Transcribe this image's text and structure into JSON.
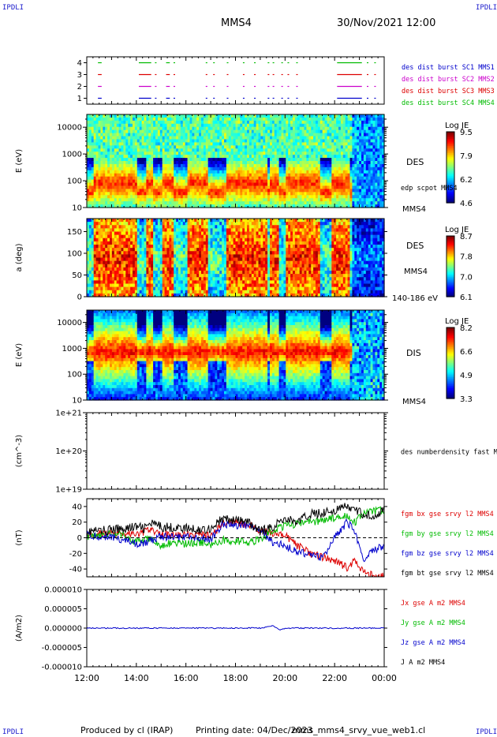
{
  "header": {
    "corner_label": "IPDLI",
    "spacecraft": "MMS4",
    "datetime": "30/Nov/2021 12:00"
  },
  "footer": {
    "producer": "Produced by cl (IRAP)",
    "printing_date": "Printing date: 04/Dec/2023",
    "filename": "mms_mms4_srvy_vue_web1.cl"
  },
  "time_axis": {
    "start_hour": 12,
    "end_hour": 24,
    "ticks": [
      "12:00",
      "14:00",
      "16:00",
      "18:00",
      "20:00",
      "22:00",
      "00:00"
    ]
  },
  "colors": {
    "blue": "#0000cc",
    "magenta": "#cc00cc",
    "red": "#dd0000",
    "green": "#00bb00",
    "black": "#000000"
  },
  "chart_data": [
    {
      "type": "timeline",
      "ylim": [
        0.5,
        4.5
      ],
      "yticks": [
        "1",
        "2",
        "3",
        "4"
      ],
      "legend": [
        {
          "label": "des dist burst SC1 MMS1",
          "color": "#0000cc"
        },
        {
          "label": "des dist burst SC2 MMS2",
          "color": "#cc00cc"
        },
        {
          "label": "des dist burst SC3 MMS3",
          "color": "#dd0000"
        },
        {
          "label": "des dist burst SC4 MMS4",
          "color": "#00bb00"
        }
      ],
      "intervals": [
        [
          12.45,
          12.6
        ],
        [
          14.1,
          14.6
        ],
        [
          14.75,
          14.8
        ],
        [
          15.2,
          15.35
        ],
        [
          15.5,
          15.55
        ],
        [
          16.8,
          16.85
        ],
        [
          17.1,
          17.15
        ],
        [
          17.65,
          17.7
        ],
        [
          18.3,
          18.35
        ],
        [
          18.75,
          18.8
        ],
        [
          19.3,
          19.35
        ],
        [
          19.5,
          19.55
        ],
        [
          19.85,
          19.9
        ],
        [
          20.1,
          20.15
        ],
        [
          20.45,
          20.5
        ],
        [
          22.1,
          23.1
        ],
        [
          23.3,
          23.35
        ],
        [
          23.6,
          23.65
        ]
      ]
    },
    {
      "type": "heatmap",
      "ylabel": "E (eV)",
      "yscale": "log",
      "ylim": [
        10,
        30000
      ],
      "yticks": [
        "10",
        "100",
        "1000",
        "10000"
      ],
      "side_label": "DES",
      "side_sub": "edp scpot MMS4",
      "bottom_label": "MMS4",
      "colorbar": {
        "title": "Log JE",
        "ticks": [
          "9.5",
          "7.9",
          "6.2",
          "4.6"
        ]
      }
    },
    {
      "type": "heatmap",
      "ylabel": "a (deg)",
      "ylim": [
        0,
        180
      ],
      "yticks": [
        "0",
        "50",
        "100",
        "150"
      ],
      "side_label": "DES",
      "side_sub": "MMS4",
      "bottom_label": "140-186 eV",
      "colorbar": {
        "title": "Log JE",
        "ticks": [
          "8.7",
          "7.8",
          "7.0",
          "6.1"
        ]
      }
    },
    {
      "type": "heatmap",
      "ylabel": "E (eV)",
      "yscale": "log",
      "ylim": [
        10,
        30000
      ],
      "yticks": [
        "10",
        "100",
        "1000",
        "10000"
      ],
      "side_label": "DIS",
      "bottom_label": "MMS4",
      "colorbar": {
        "title": "Log JE",
        "ticks": [
          "8.2",
          "6.6",
          "4.9",
          "3.3"
        ]
      }
    },
    {
      "type": "line",
      "ylabel": "(cm^-3)",
      "yscale": "log",
      "ylim": [
        1e+19,
        1e+21
      ],
      "yticks": [
        "1e+19",
        "1e+20",
        "1e+21"
      ],
      "legend": [
        {
          "label": "des numberdensity fast M",
          "color": "#000000"
        }
      ],
      "series": []
    },
    {
      "type": "line",
      "ylabel": "(nT)",
      "ylim": [
        -50,
        50
      ],
      "yticks": [
        "-40",
        "-20",
        "0",
        "20",
        "40"
      ],
      "legend": [
        {
          "label": "fgm bx gse srvy l2 MMS4",
          "color": "#dd0000"
        },
        {
          "label": "fgm by gse srvy l2 MMS4",
          "color": "#00bb00"
        },
        {
          "label": "fgm bz gse srvy l2 MMS4",
          "color": "#0000cc"
        },
        {
          "label": "fgm bt gse srvy l2 MMS4",
          "color": "#000000"
        }
      ],
      "series": [
        {
          "name": "fgm bt gse srvy l2 MMS4",
          "color": "#000000",
          "x": [
            12,
            12.5,
            13,
            13.5,
            14,
            14.3,
            14.6,
            15,
            15.5,
            16,
            16.5,
            17,
            17.3,
            17.5,
            18,
            18.5,
            19,
            19.5,
            20,
            20.5,
            21,
            21.5,
            22,
            22.5,
            22.8,
            23.2,
            23.5,
            24
          ],
          "values": [
            8,
            9,
            10,
            12,
            14,
            12,
            18,
            14,
            13,
            12,
            10,
            12,
            20,
            24,
            22,
            20,
            8,
            14,
            25,
            20,
            30,
            32,
            35,
            40,
            35,
            30,
            28,
            35
          ]
        },
        {
          "name": "fgm bx gse srvy l2 MMS4",
          "color": "#dd0000",
          "x": [
            12,
            12.5,
            13,
            13.5,
            14,
            14.5,
            15,
            15.5,
            16,
            16.5,
            17,
            17.5,
            18,
            18.5,
            19,
            19.5,
            20,
            20.5,
            21,
            21.5,
            22,
            22.5,
            22.8,
            23.2,
            23.5,
            24
          ],
          "values": [
            5,
            6,
            5,
            6,
            4,
            10,
            5,
            4,
            3,
            4,
            2,
            18,
            20,
            16,
            10,
            6,
            4,
            -10,
            -20,
            -25,
            -30,
            -38,
            -30,
            -45,
            -48,
            -50
          ]
        },
        {
          "name": "fgm by gse srvy l2 MMS4",
          "color": "#00bb00",
          "x": [
            12,
            12.5,
            13,
            13.5,
            14,
            14.5,
            15,
            15.5,
            16,
            16.5,
            17,
            17.5,
            18,
            18.5,
            19,
            19.5,
            20,
            20.5,
            21,
            21.5,
            22,
            22.5,
            22.8,
            23.2,
            23.5,
            24
          ],
          "values": [
            2,
            4,
            5,
            3,
            -6,
            -2,
            -10,
            -6,
            -8,
            -5,
            -10,
            -3,
            -4,
            -6,
            -2,
            10,
            15,
            18,
            20,
            22,
            25,
            28,
            20,
            30,
            34,
            35
          ]
        },
        {
          "name": "fgm bz gse srvy l2 MMS4",
          "color": "#0000cc",
          "x": [
            12,
            12.5,
            13,
            13.5,
            14,
            14.5,
            15,
            15.5,
            16,
            16.5,
            17,
            17.5,
            18,
            18.5,
            19,
            19.5,
            20,
            20.5,
            21,
            21.5,
            22,
            22.5,
            22.8,
            23.2,
            23.5,
            24
          ],
          "values": [
            3,
            2,
            0,
            -2,
            -8,
            -5,
            2,
            0,
            1,
            0,
            -2,
            18,
            16,
            15,
            10,
            -6,
            -10,
            -18,
            -22,
            -26,
            0,
            20,
            10,
            -30,
            -15,
            -12
          ]
        }
      ]
    },
    {
      "type": "line",
      "ylabel": "(A/m2)",
      "ylim": [
        -1e-05,
        1e-05
      ],
      "yticks": [
        "-0.000010",
        "-0.000005",
        "0.000000",
        "0.000005",
        "0.000010"
      ],
      "legend": [
        {
          "label": "Jx gse A m2 MMS4",
          "color": "#dd0000"
        },
        {
          "label": "Jy gse A m2 MMS4",
          "color": "#00bb00"
        },
        {
          "label": "Jz gse A m2 MMS4",
          "color": "#0000cc"
        },
        {
          "label": "J A m2 MMS4",
          "color": "#000000"
        }
      ],
      "series": [
        {
          "name": "Jz gse A m2 MMS4",
          "color": "#0000cc",
          "x": [
            12,
            13,
            14,
            15,
            16,
            17,
            18,
            19,
            19.5,
            19.8,
            20,
            21,
            22,
            23,
            24
          ],
          "values": [
            0,
            0,
            0,
            0,
            0,
            0,
            0,
            0,
            6e-07,
            -5e-07,
            0,
            0,
            0,
            0,
            0
          ]
        }
      ]
    }
  ]
}
